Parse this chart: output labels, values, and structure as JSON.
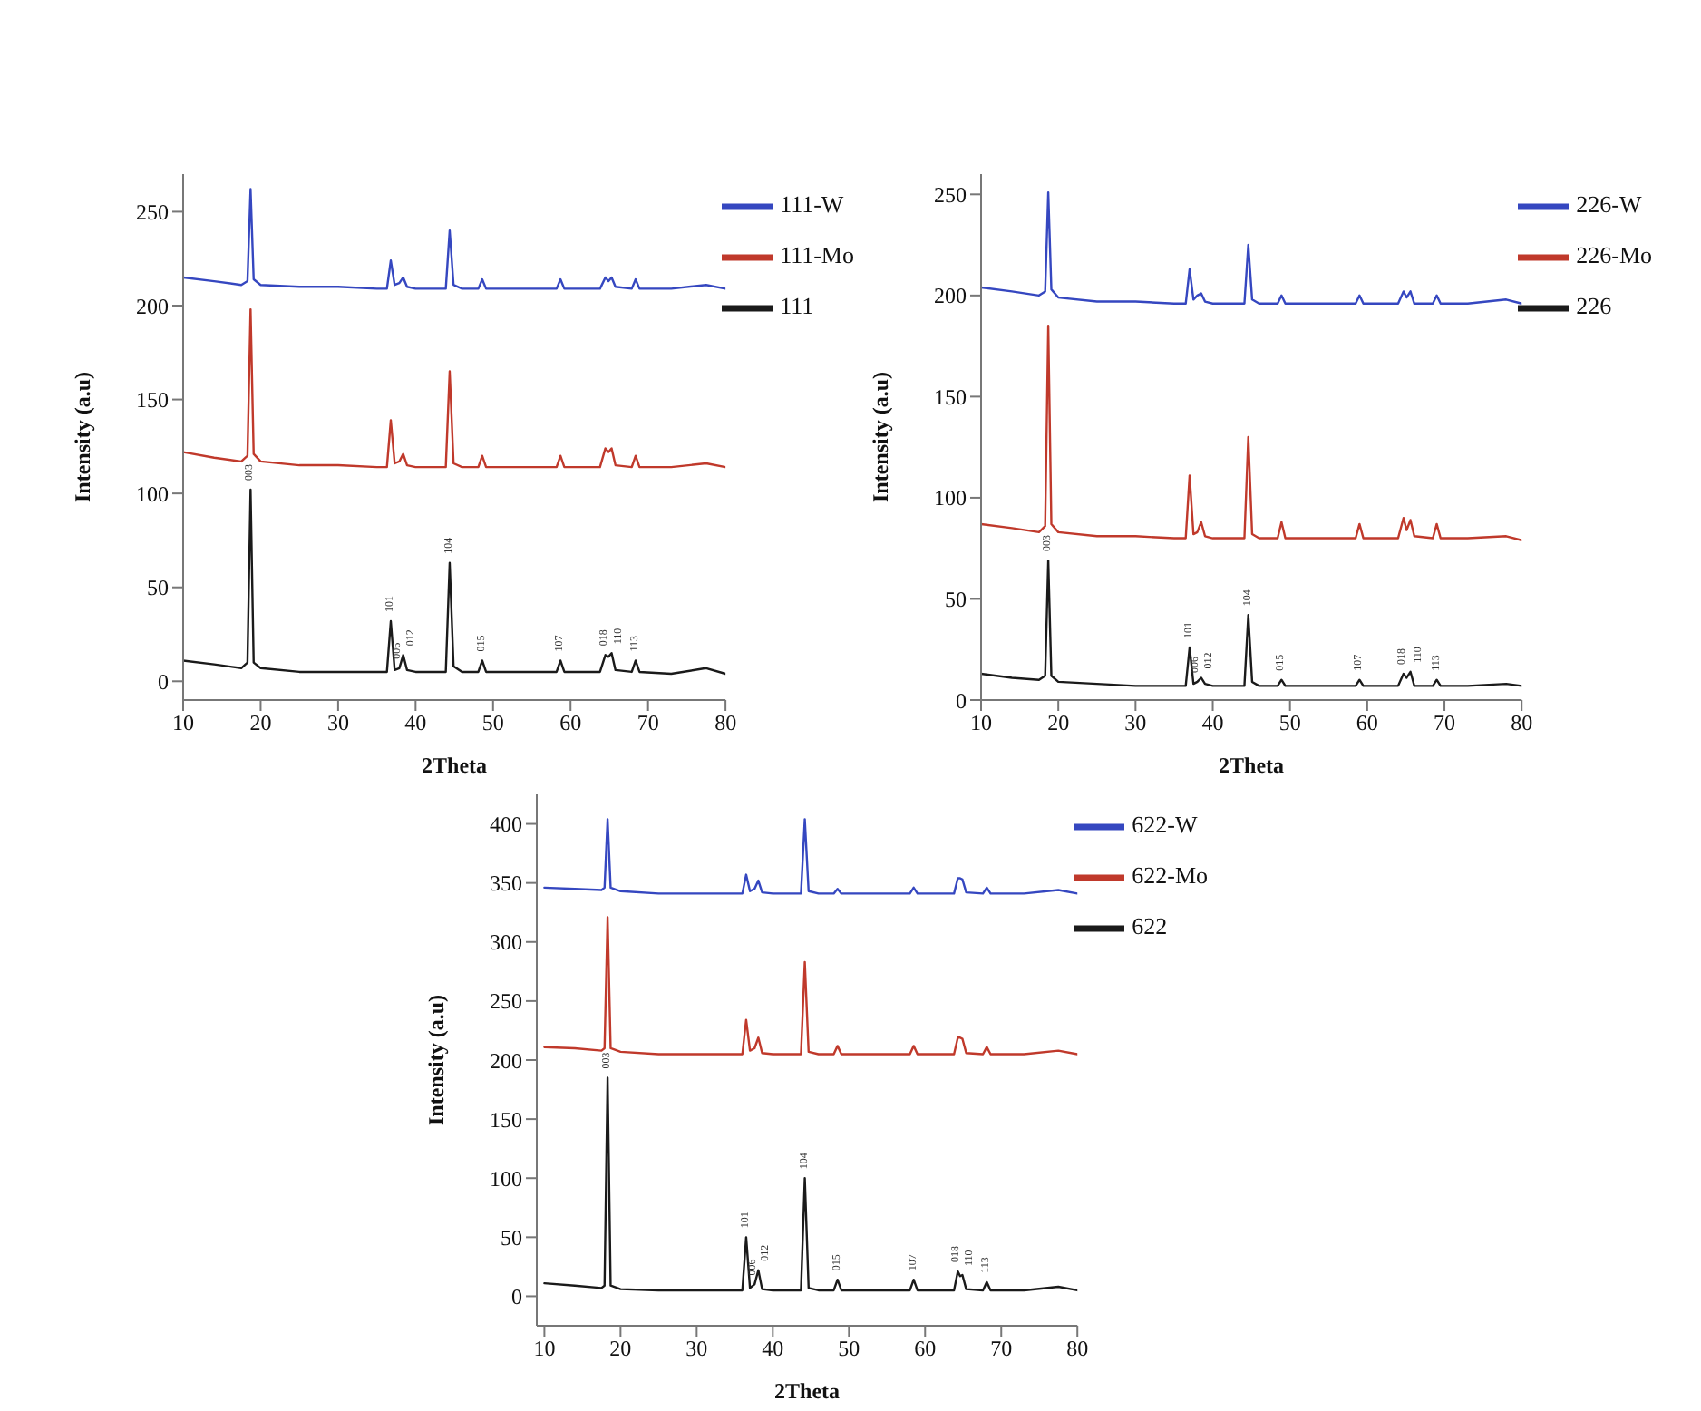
{
  "chart_data": [
    {
      "type": "line",
      "xlabel": "2Theta",
      "ylabel": "Intensity (a.u)",
      "xlim": [
        10,
        80
      ],
      "xticks": [
        10,
        20,
        30,
        40,
        50,
        60,
        70,
        80
      ],
      "ylim": [
        -10,
        270
      ],
      "yticks": [
        0,
        50,
        100,
        150,
        200,
        250
      ],
      "grid": false,
      "legend": "top right",
      "marker": "none",
      "line_style": "solid",
      "x": [
        10,
        14,
        17.5,
        18.3,
        18.7,
        19.1,
        20,
        25,
        30,
        35,
        36.3,
        36.8,
        37.3,
        37.9,
        38.4,
        38.9,
        40,
        43.9,
        44.4,
        44.9,
        46,
        48.1,
        48.6,
        49.1,
        55,
        58.2,
        58.7,
        59.2,
        63.8,
        64.5,
        64.9,
        65.3,
        65.8,
        67.9,
        68.4,
        68.9,
        73,
        77.5,
        80
      ],
      "series": [
        {
          "name": "111-W",
          "color": "#3547c0",
          "values": [
            215,
            213,
            211,
            213,
            262,
            214,
            211,
            210,
            210,
            209,
            209,
            224,
            211,
            212,
            215,
            210,
            209,
            209,
            240,
            211,
            209,
            209,
            214,
            209,
            209,
            209,
            214,
            209,
            209,
            215,
            213,
            215,
            210,
            209,
            214,
            209,
            209,
            211,
            209
          ]
        },
        {
          "name": "111-Mo",
          "color": "#c0392b",
          "values": [
            122,
            119,
            117,
            120,
            198,
            121,
            117,
            115,
            115,
            114,
            114,
            139,
            116,
            117,
            121,
            115,
            114,
            114,
            165,
            116,
            114,
            114,
            120,
            114,
            114,
            114,
            120,
            114,
            114,
            124,
            122,
            124,
            115,
            114,
            120,
            114,
            114,
            116,
            114
          ]
        },
        {
          "name": "111",
          "color": "#1a1a1a",
          "values": [
            11,
            9,
            7,
            10,
            102,
            10,
            7,
            5,
            5,
            5,
            5,
            32,
            6,
            7,
            14,
            6,
            5,
            5,
            63,
            8,
            5,
            5,
            11,
            5,
            5,
            5,
            11,
            5,
            5,
            14,
            13,
            15,
            6,
            5,
            11,
            5,
            4,
            7,
            4
          ]
        }
      ],
      "annotations": [
        {
          "text": "003",
          "x": 18.7,
          "y": 102
        },
        {
          "text": "101",
          "x": 36.8,
          "y": 32
        },
        {
          "text": "006",
          "x": 37.9,
          "y": 7
        },
        {
          "text": "012",
          "x": 38.4,
          "y": 14
        },
        {
          "text": "104",
          "x": 44.4,
          "y": 63
        },
        {
          "text": "015",
          "x": 48.6,
          "y": 11
        },
        {
          "text": "107",
          "x": 58.7,
          "y": 11
        },
        {
          "text": "018",
          "x": 64.5,
          "y": 14
        },
        {
          "text": "110",
          "x": 65.3,
          "y": 15
        },
        {
          "text": "113",
          "x": 68.4,
          "y": 11
        }
      ]
    },
    {
      "type": "line",
      "xlabel": "2Theta",
      "ylabel": "Intensity (a.u)",
      "xlim": [
        10,
        80
      ],
      "xticks": [
        10,
        20,
        30,
        40,
        50,
        60,
        70,
        80
      ],
      "ylim": [
        0,
        260
      ],
      "yticks": [
        0,
        50,
        100,
        150,
        200,
        250
      ],
      "grid": false,
      "legend": "top right",
      "marker": "none",
      "line_style": "solid",
      "x": [
        10,
        14,
        17.5,
        18.3,
        18.7,
        19.1,
        20,
        25,
        30,
        35,
        36.5,
        37,
        37.5,
        38,
        38.5,
        39,
        40,
        44.1,
        44.6,
        45.1,
        46,
        48.4,
        48.9,
        49.4,
        55,
        58.5,
        59,
        59.5,
        64,
        64.7,
        65.1,
        65.6,
        66.1,
        68.5,
        69,
        69.5,
        73,
        78,
        80
      ],
      "series": [
        {
          "name": "226-W",
          "color": "#3547c0",
          "values": [
            204,
            202,
            200,
            202,
            251,
            203,
            199,
            197,
            197,
            196,
            196,
            213,
            198,
            200,
            201,
            197,
            196,
            196,
            225,
            198,
            196,
            196,
            200,
            196,
            196,
            196,
            200,
            196,
            196,
            202,
            199,
            202,
            196,
            196,
            200,
            196,
            196,
            198,
            196
          ]
        },
        {
          "name": "226-Mo",
          "color": "#c0392b",
          "values": [
            87,
            85,
            83,
            86,
            185,
            87,
            83,
            81,
            81,
            80,
            80,
            111,
            82,
            83,
            88,
            81,
            80,
            80,
            130,
            82,
            80,
            80,
            88,
            80,
            80,
            80,
            87,
            80,
            80,
            90,
            84,
            89,
            81,
            80,
            87,
            80,
            80,
            81,
            79
          ]
        },
        {
          "name": "226",
          "color": "#1a1a1a",
          "values": [
            13,
            11,
            10,
            12,
            69,
            12,
            9,
            8,
            7,
            7,
            7,
            26,
            8,
            9,
            11,
            8,
            7,
            7,
            42,
            9,
            7,
            7,
            10,
            7,
            7,
            7,
            10,
            7,
            7,
            13,
            11,
            14,
            7,
            7,
            10,
            7,
            7,
            8,
            7
          ]
        }
      ],
      "annotations": [
        {
          "text": "003",
          "x": 18.7,
          "y": 69
        },
        {
          "text": "101",
          "x": 37,
          "y": 26
        },
        {
          "text": "006",
          "x": 38,
          "y": 9
        },
        {
          "text": "012",
          "x": 38.5,
          "y": 11
        },
        {
          "text": "104",
          "x": 44.6,
          "y": 42
        },
        {
          "text": "015",
          "x": 48.9,
          "y": 10
        },
        {
          "text": "107",
          "x": 59,
          "y": 10
        },
        {
          "text": "018",
          "x": 64.7,
          "y": 13
        },
        {
          "text": "110",
          "x": 65.6,
          "y": 14
        },
        {
          "text": "113",
          "x": 69,
          "y": 10
        }
      ]
    },
    {
      "type": "line",
      "xlabel": "2Theta",
      "ylabel": "Intensity (a.u)",
      "xlim": [
        9,
        80
      ],
      "xticks": [
        10,
        20,
        30,
        40,
        50,
        60,
        70,
        80
      ],
      "ylim": [
        -25,
        425
      ],
      "yticks": [
        0,
        50,
        100,
        150,
        200,
        250,
        300,
        350,
        400
      ],
      "grid": false,
      "legend": "top right",
      "marker": "none",
      "line_style": "solid",
      "x": [
        10,
        14,
        17.5,
        17.9,
        18.3,
        18.7,
        20,
        25,
        30,
        35,
        36,
        36.5,
        37,
        37.6,
        38.1,
        38.6,
        40,
        43.7,
        44.2,
        44.7,
        46,
        48,
        48.5,
        49,
        55,
        58,
        58.5,
        59,
        63.8,
        64.3,
        64.6,
        64.9,
        65.4,
        67.6,
        68.1,
        68.6,
        73,
        77.5,
        80
      ],
      "series": [
        {
          "name": "622-W",
          "color": "#3547c0",
          "values": [
            346,
            345,
            344,
            346,
            404,
            346,
            343,
            341,
            341,
            341,
            341,
            357,
            343,
            345,
            352,
            342,
            341,
            341,
            404,
            343,
            341,
            341,
            345,
            341,
            341,
            341,
            346,
            341,
            341,
            354,
            354,
            353,
            342,
            341,
            346,
            341,
            341,
            344,
            341
          ]
        },
        {
          "name": "622-Mo",
          "color": "#c0392b",
          "values": [
            211,
            210,
            208,
            210,
            321,
            210,
            207,
            205,
            205,
            205,
            205,
            234,
            208,
            210,
            219,
            206,
            205,
            205,
            283,
            207,
            205,
            205,
            212,
            205,
            205,
            205,
            212,
            205,
            205,
            219,
            219,
            218,
            206,
            205,
            211,
            205,
            205,
            208,
            205
          ]
        },
        {
          "name": "622",
          "color": "#1a1a1a",
          "values": [
            11,
            9,
            7,
            9,
            185,
            9,
            6,
            5,
            5,
            5,
            5,
            50,
            7,
            10,
            22,
            6,
            5,
            5,
            100,
            7,
            5,
            5,
            14,
            5,
            5,
            5,
            14,
            5,
            5,
            21,
            17,
            18,
            6,
            5,
            12,
            5,
            5,
            8,
            5
          ]
        }
      ],
      "annotations": [
        {
          "text": "003",
          "x": 18.3,
          "y": 185
        },
        {
          "text": "101",
          "x": 36.5,
          "y": 50
        },
        {
          "text": "006",
          "x": 37.6,
          "y": 10
        },
        {
          "text": "012",
          "x": 38.1,
          "y": 22
        },
        {
          "text": "104",
          "x": 44.2,
          "y": 100
        },
        {
          "text": "015",
          "x": 48.5,
          "y": 14
        },
        {
          "text": "107",
          "x": 58.5,
          "y": 14
        },
        {
          "text": "018",
          "x": 64.3,
          "y": 21
        },
        {
          "text": "110",
          "x": 64.9,
          "y": 18
        },
        {
          "text": "113",
          "x": 68.1,
          "y": 12
        }
      ]
    }
  ]
}
